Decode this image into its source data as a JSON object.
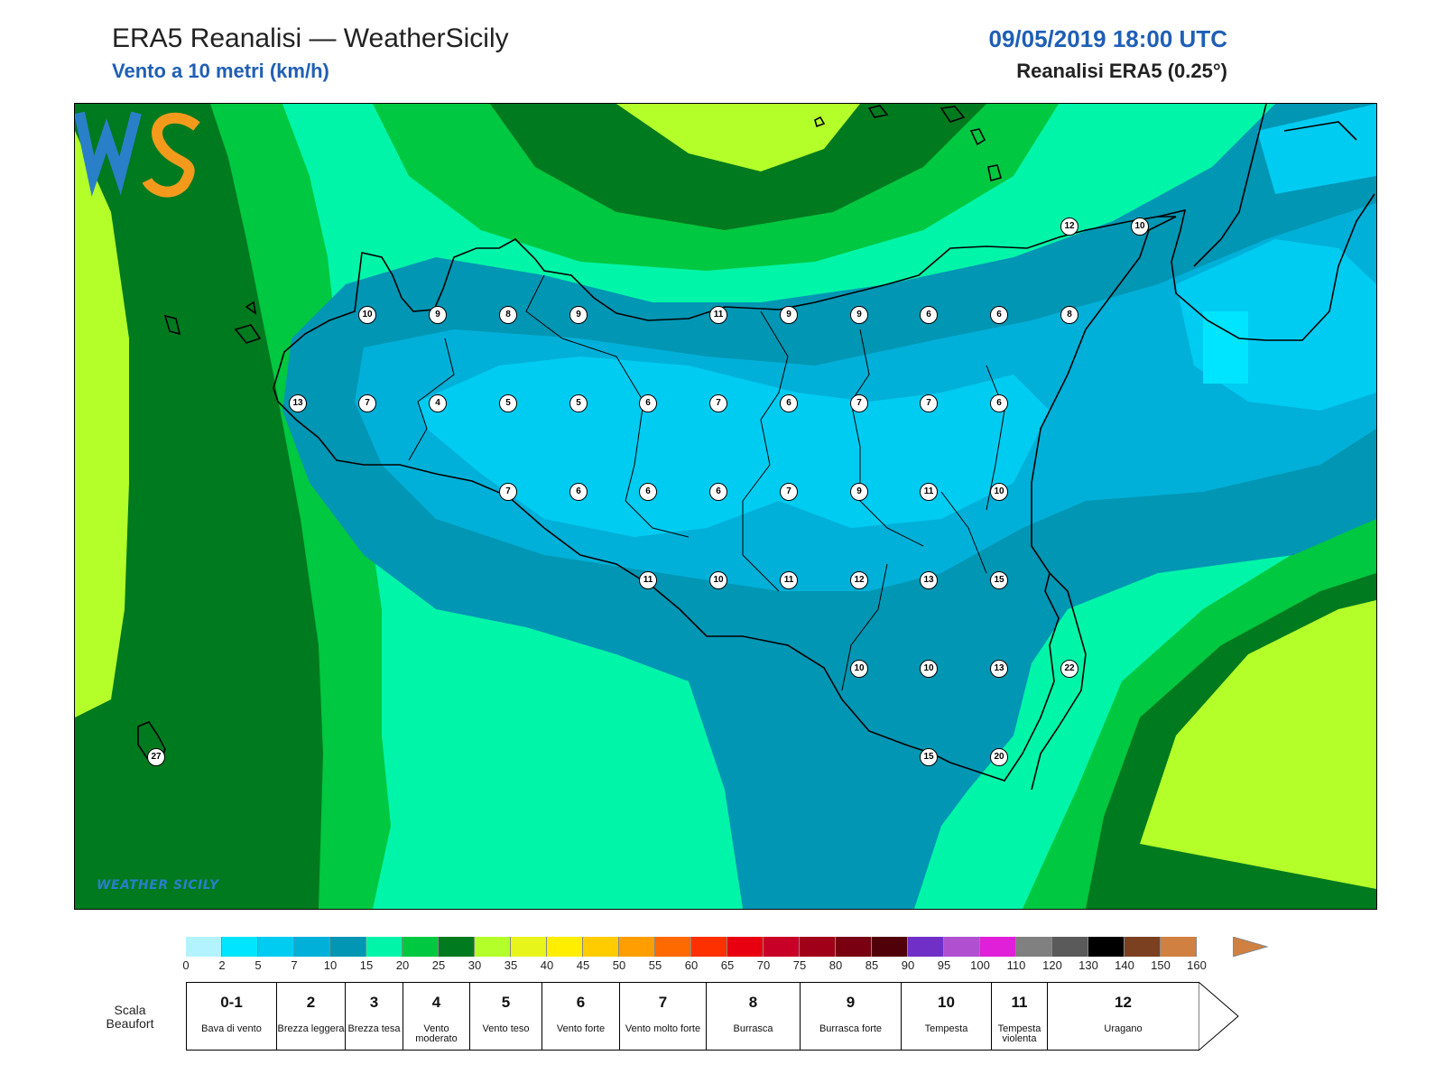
{
  "header": {
    "title": "ERA5 Reanalisi — WeatherSicily",
    "subtitle": "Vento a 10 metri (km/h)",
    "datetime": "09/05/2019 18:00 UTC",
    "source": "Reanalisi ERA5 (0.25°)"
  },
  "logo": {
    "text": "WEATHER SICILY",
    "mark": "WS"
  },
  "wind_labels": [
    "10",
    "9",
    "8",
    "9",
    "11",
    "9",
    "9",
    "6",
    "6",
    "8",
    "12",
    "10",
    "13",
    "7",
    "4",
    "5",
    "5",
    "6",
    "7",
    "6",
    "7",
    "7",
    "6",
    "7",
    "6",
    "6",
    "6",
    "7",
    "9",
    "11",
    "10",
    "11",
    "10",
    "11",
    "12",
    "13",
    "15",
    "10",
    "10",
    "13",
    "22",
    "15",
    "20",
    "27"
  ],
  "colorbar": {
    "ticks": [
      "0",
      "2",
      "5",
      "7",
      "10",
      "15",
      "20",
      "25",
      "30",
      "35",
      "40",
      "45",
      "50",
      "55",
      "60",
      "65",
      "70",
      "75",
      "80",
      "85",
      "90",
      "95",
      "100",
      "110",
      "120",
      "130",
      "140",
      "150",
      "160"
    ],
    "colors": [
      "#b3f3ff",
      "#00e5ff",
      "#00ccf2",
      "#00b0d8",
      "#0096b4",
      "#00f5a8",
      "#00c840",
      "#007a1e",
      "#b4ff2a",
      "#e8f51a",
      "#ffee00",
      "#ffcc00",
      "#ff9e00",
      "#ff6a00",
      "#ff3000",
      "#e80010",
      "#c80028",
      "#a00018",
      "#780010",
      "#500008",
      "#7030c8",
      "#b050d0",
      "#e020d8",
      "#808080",
      "#5a5a5a",
      "#000000",
      "#7a4020",
      "#d08040"
    ]
  },
  "beaufort": {
    "title": "Scala Beaufort",
    "levels": [
      {
        "num": "0-1",
        "desc": "Bava di vento"
      },
      {
        "num": "2",
        "desc": "Brezza leggera"
      },
      {
        "num": "3",
        "desc": "Brezza tesa"
      },
      {
        "num": "4",
        "desc": "Vento moderato"
      },
      {
        "num": "5",
        "desc": "Vento teso"
      },
      {
        "num": "6",
        "desc": "Vento forte"
      },
      {
        "num": "7",
        "desc": "Vento molto forte"
      },
      {
        "num": "8",
        "desc": "Burrasca"
      },
      {
        "num": "9",
        "desc": "Burrasca forte"
      },
      {
        "num": "10",
        "desc": "Tempesta"
      },
      {
        "num": "11",
        "desc": "Tempesta violenta"
      },
      {
        "num": "12",
        "desc": "Uragano"
      }
    ]
  }
}
